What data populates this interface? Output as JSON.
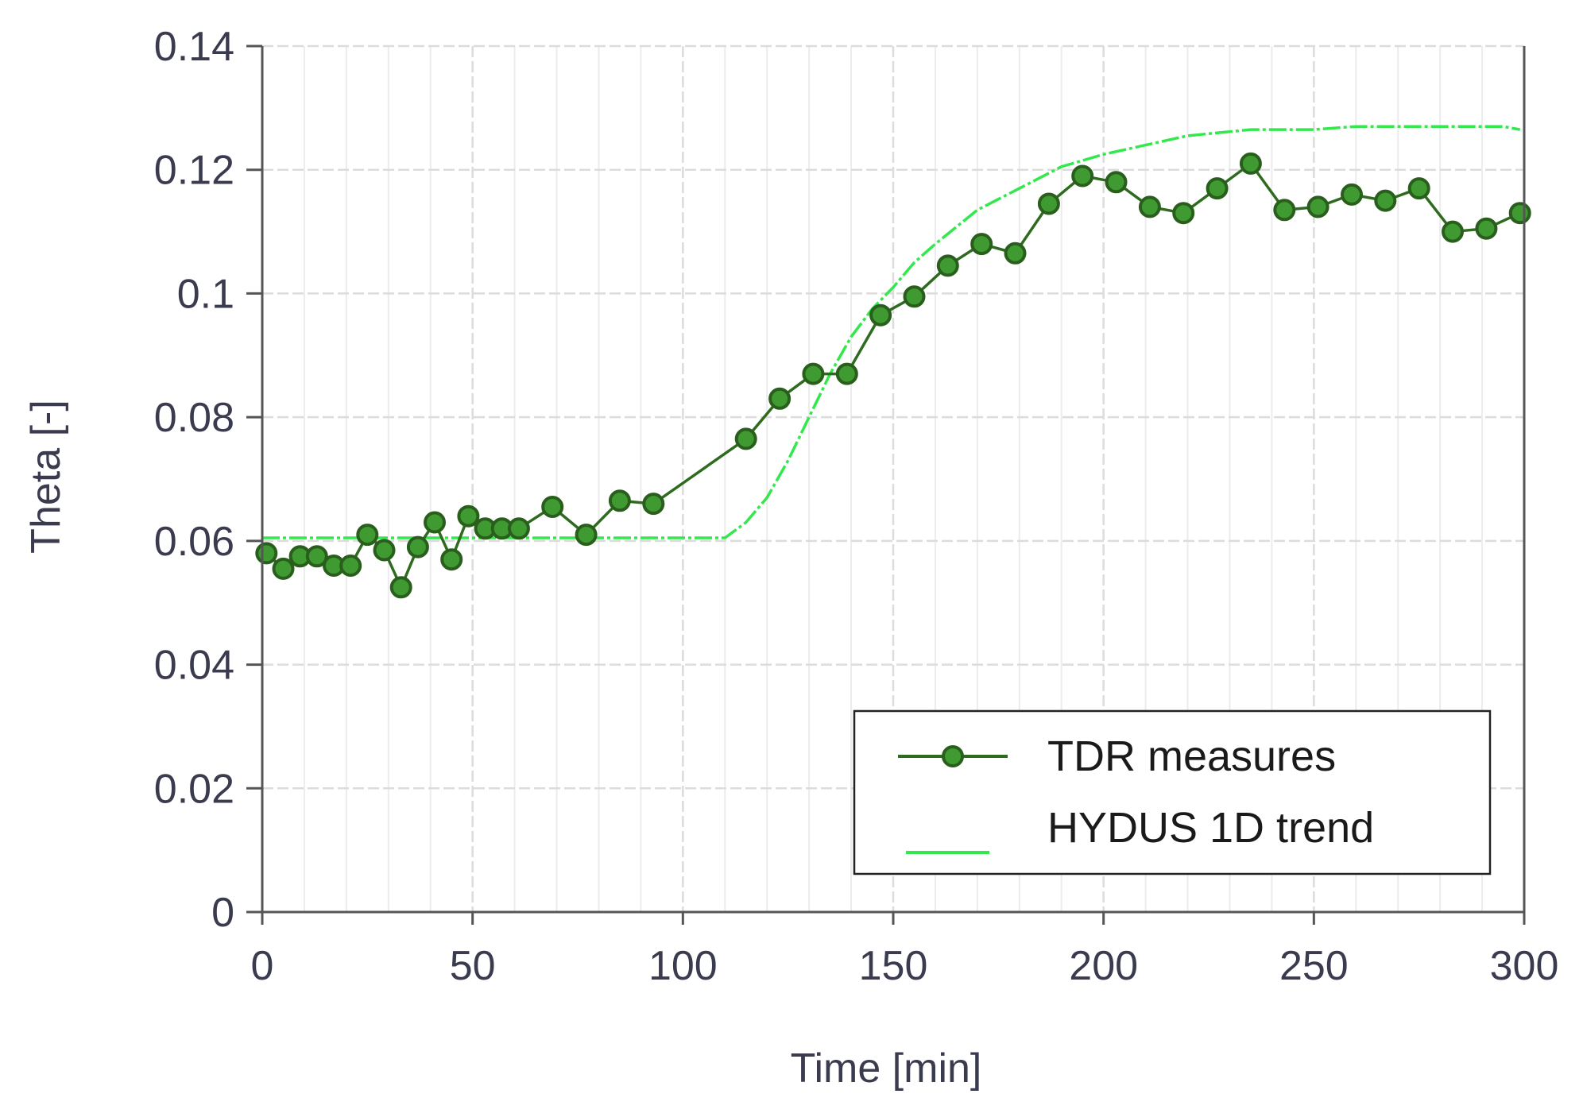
{
  "chart_data": {
    "type": "line",
    "xlabel": "Time [min]",
    "ylabel": "Theta [-]",
    "xlim": [
      0,
      300
    ],
    "ylim": [
      0,
      0.14
    ],
    "x_ticks": [
      0,
      50,
      100,
      150,
      200,
      250,
      300
    ],
    "x_tick_labels": [
      "0",
      "50",
      "100",
      "150",
      "200",
      "250",
      "300"
    ],
    "y_ticks": [
      0,
      0.02,
      0.04,
      0.06,
      0.08,
      0.1,
      0.12,
      0.14
    ],
    "y_tick_labels": [
      "0",
      "0.02",
      "0.04",
      "0.06",
      "0.08",
      "0.1",
      "0.12",
      "0.14"
    ],
    "grid": true,
    "legend": "bottom-right",
    "colors": {
      "tdr_line": "#2e6b1f",
      "tdr_marker": "#3f9a32",
      "hydus": "#33e84c",
      "grid": "#dcdcdc",
      "axis": "#555555"
    },
    "series": [
      {
        "name": "TDR measures",
        "style": "line-markers",
        "points": [
          [
            1,
            0.058
          ],
          [
            5,
            0.0555
          ],
          [
            9,
            0.0575
          ],
          [
            13,
            0.0575
          ],
          [
            17,
            0.056
          ],
          [
            21,
            0.056
          ],
          [
            25,
            0.061
          ],
          [
            29,
            0.0585
          ],
          [
            33,
            0.0525
          ],
          [
            37,
            0.059
          ],
          [
            41,
            0.063
          ],
          [
            45,
            0.057
          ],
          [
            49,
            0.064
          ],
          [
            53,
            0.062
          ],
          [
            57,
            0.062
          ],
          [
            61,
            0.062
          ],
          [
            69,
            0.0655
          ],
          [
            77,
            0.061
          ],
          [
            85,
            0.0665
          ],
          [
            93,
            0.066
          ],
          [
            115,
            0.0765
          ],
          [
            123,
            0.083
          ],
          [
            131,
            0.087
          ],
          [
            139,
            0.087
          ],
          [
            147,
            0.0965
          ],
          [
            155,
            0.0995
          ],
          [
            163,
            0.1045
          ],
          [
            171,
            0.108
          ],
          [
            179,
            0.1065
          ],
          [
            187,
            0.1145
          ],
          [
            195,
            0.119
          ],
          [
            203,
            0.118
          ],
          [
            211,
            0.114
          ],
          [
            219,
            0.113
          ],
          [
            227,
            0.117
          ],
          [
            235,
            0.121
          ],
          [
            243,
            0.1135
          ],
          [
            251,
            0.114
          ],
          [
            259,
            0.116
          ],
          [
            267,
            0.115
          ],
          [
            275,
            0.117
          ],
          [
            283,
            0.11
          ],
          [
            291,
            0.1105
          ],
          [
            299,
            0.113
          ]
        ]
      },
      {
        "name": "HYDUS 1D trend",
        "style": "dashed-line",
        "points": [
          [
            0,
            0.0605
          ],
          [
            50,
            0.0605
          ],
          [
            100,
            0.0605
          ],
          [
            110,
            0.0605
          ],
          [
            115,
            0.063
          ],
          [
            120,
            0.067
          ],
          [
            125,
            0.073
          ],
          [
            130,
            0.08
          ],
          [
            135,
            0.087
          ],
          [
            140,
            0.093
          ],
          [
            145,
            0.0975
          ],
          [
            150,
            0.101
          ],
          [
            155,
            0.105
          ],
          [
            160,
            0.108
          ],
          [
            170,
            0.1135
          ],
          [
            180,
            0.117
          ],
          [
            190,
            0.1205
          ],
          [
            200,
            0.1225
          ],
          [
            210,
            0.124
          ],
          [
            220,
            0.1255
          ],
          [
            235,
            0.1265
          ],
          [
            250,
            0.1265
          ],
          [
            260,
            0.127
          ],
          [
            280,
            0.127
          ],
          [
            295,
            0.127
          ],
          [
            299,
            0.1265
          ]
        ]
      }
    ]
  }
}
